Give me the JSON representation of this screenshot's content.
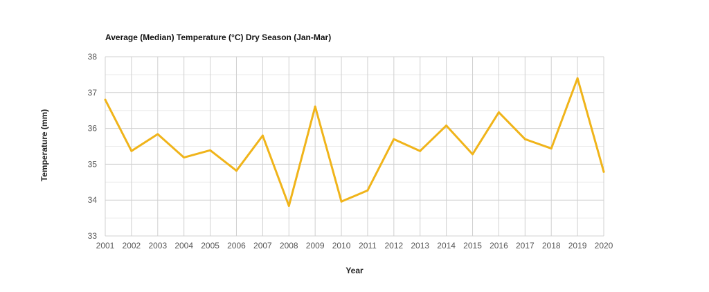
{
  "chart_data": {
    "type": "line",
    "title": "Average (Median) Temperature (°C) Dry Season (Jan-Mar)",
    "xlabel": "Year",
    "ylabel": "Temperature (mm)",
    "x": [
      "2001",
      "2002",
      "2003",
      "2004",
      "2005",
      "2006",
      "2007",
      "2008",
      "2009",
      "2010",
      "2011",
      "2012",
      "2013",
      "2014",
      "2015",
      "2016",
      "2017",
      "2018",
      "2019",
      "2020"
    ],
    "ylim": [
      33,
      38
    ],
    "yticks": [
      "33",
      "34",
      "35",
      "36",
      "37",
      "38"
    ],
    "grid": true,
    "legend": "none",
    "series": [
      {
        "color": "#f0b41a",
        "values": [
          36.8,
          35.37,
          35.84,
          35.19,
          35.39,
          34.82,
          35.8,
          33.84,
          36.61,
          33.96,
          34.27,
          35.7,
          35.37,
          36.08,
          35.28,
          36.45,
          35.7,
          35.44,
          37.4,
          34.79
        ]
      }
    ]
  }
}
